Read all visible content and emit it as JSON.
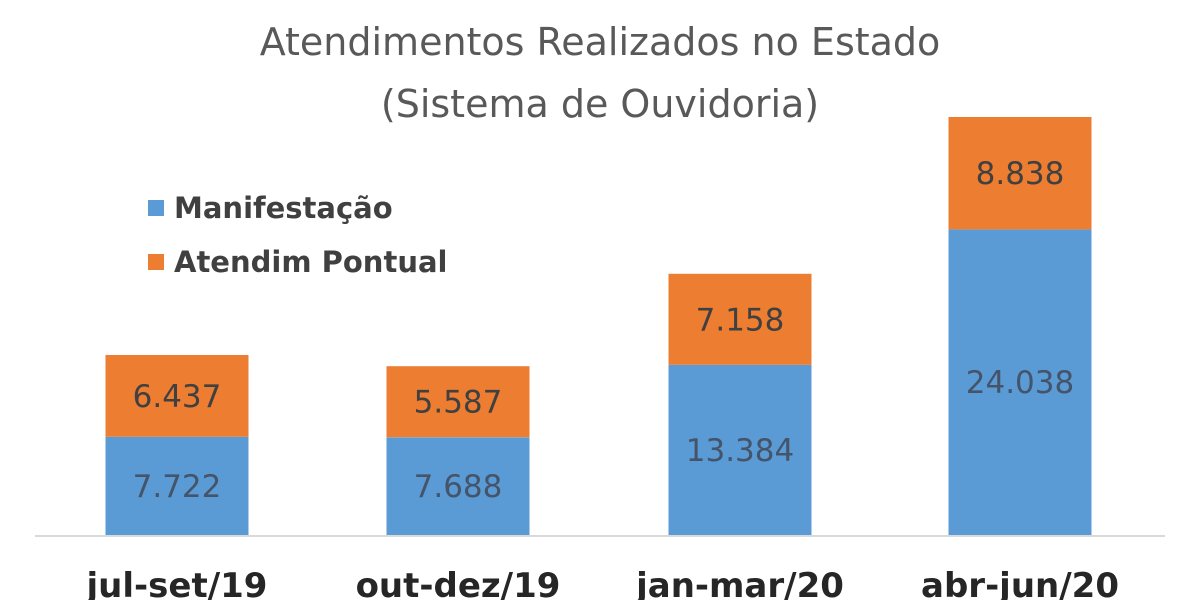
{
  "chart_data": {
    "type": "bar",
    "stacked": true,
    "title": "Atendimentos  Realizados no Estado",
    "subtitle": "(Sistema de Ouvidoria)",
    "categories": [
      "jul-set/19",
      "out-dez/19",
      "jan-mar/20",
      "abr-jun/20"
    ],
    "series": [
      {
        "name": "Manifestação",
        "color": "#5b9bd5",
        "values": [
          7722,
          7688,
          13384,
          24038
        ],
        "labels": [
          "7.722",
          "7.688",
          "13.384",
          "24.038"
        ]
      },
      {
        "name": "Atendim Pontual",
        "color": "#ed7d31",
        "values": [
          6437,
          5587,
          7158,
          8838
        ],
        "labels": [
          "6.437",
          "5.587",
          "7.158",
          "8.838"
        ]
      }
    ],
    "ylim": [
      0,
      35000
    ],
    "grid": false,
    "legend_position": "top-left"
  }
}
